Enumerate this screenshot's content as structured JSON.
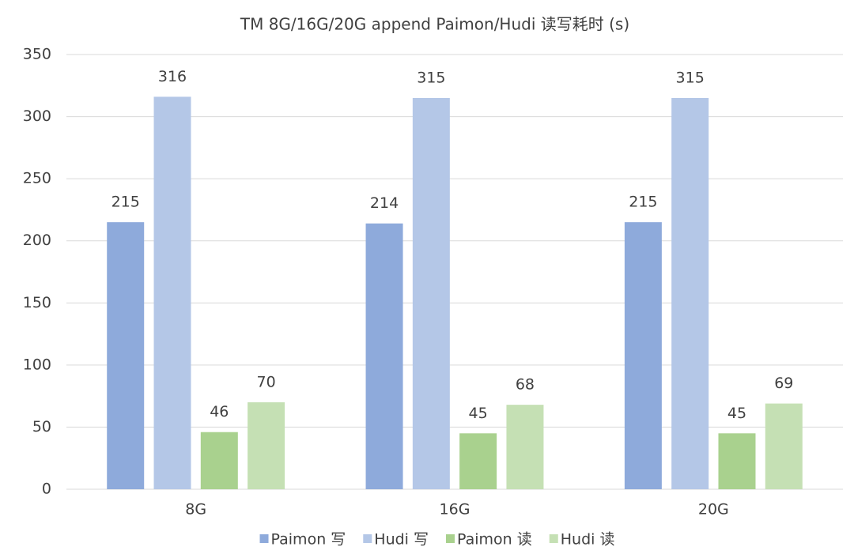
{
  "chart_data": {
    "type": "bar",
    "title": "TM 8G/16G/20G append Paimon/Hudi 读写耗时 (s)",
    "categories": [
      "8G",
      "16G",
      "20G"
    ],
    "series": [
      {
        "name": "Paimon 写",
        "color": "#8eaadb",
        "values": [
          215,
          214,
          215
        ]
      },
      {
        "name": "Hudi 写",
        "color": "#b4c7e7",
        "values": [
          316,
          315,
          315
        ]
      },
      {
        "name": "Paimon 读",
        "color": "#a9d18e",
        "values": [
          46,
          45,
          45
        ]
      },
      {
        "name": "Hudi 读",
        "color": "#c5e0b4",
        "values": [
          70,
          68,
          69
        ]
      }
    ],
    "ylim": [
      0,
      350
    ],
    "yticks": [
      0,
      50,
      100,
      150,
      200,
      250,
      300,
      350
    ],
    "grid": true,
    "legend": "bottom"
  }
}
